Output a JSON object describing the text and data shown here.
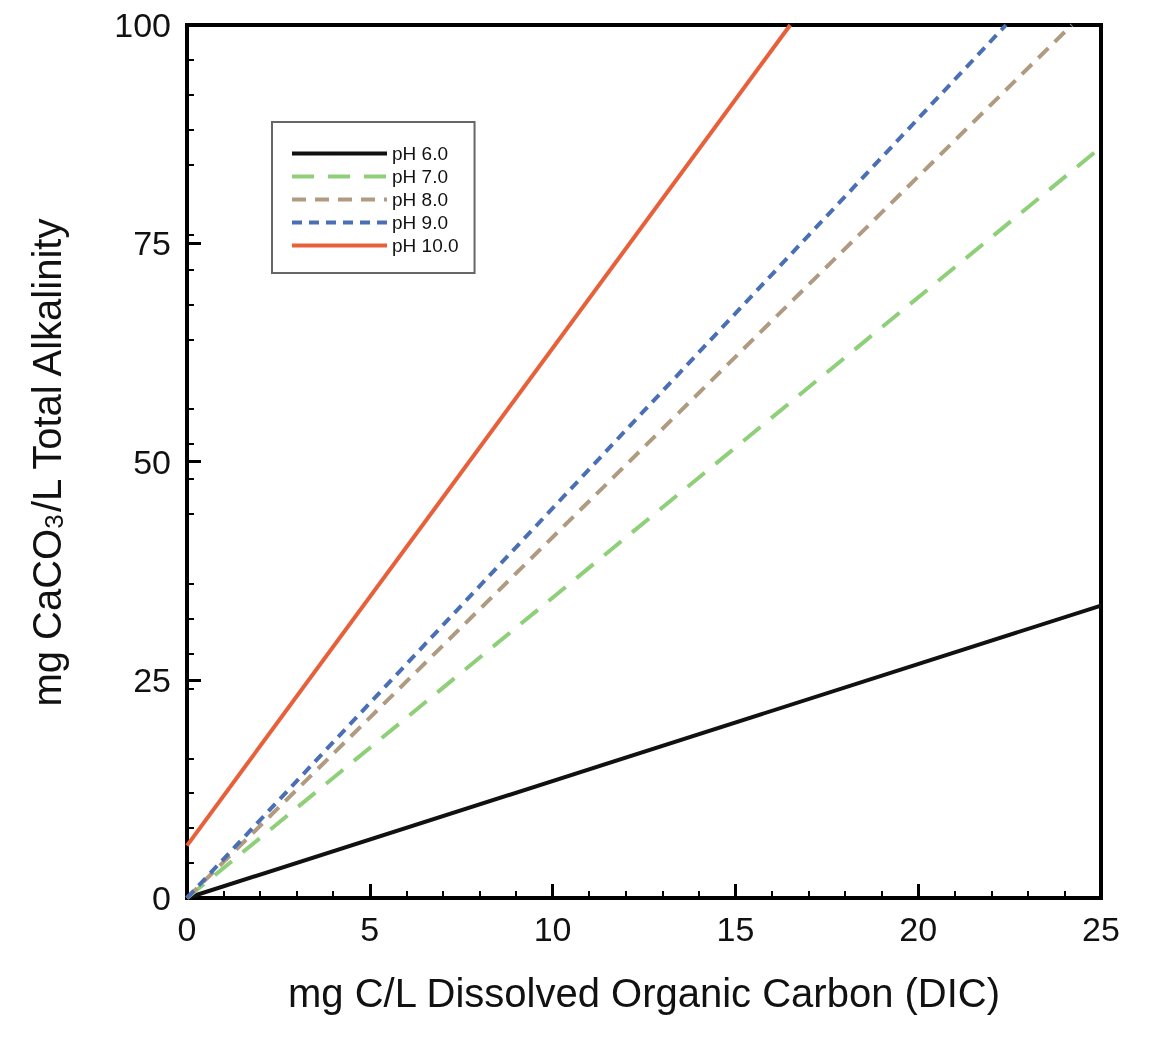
{
  "chart_data": {
    "type": "line",
    "xlabel": "mg C/L Dissolved Organic Carbon (DIC)",
    "ylabel": "mg CaCO$_{3}$/L Total Alkalinity",
    "xlim": [
      0,
      25
    ],
    "xticks": [
      0,
      5,
      10,
      15,
      20,
      25
    ],
    "ylim": [
      0,
      100
    ],
    "yticks": [
      0,
      25,
      50,
      75,
      100
    ],
    "grid": false,
    "legend": "top left",
    "marker": "none",
    "series": [
      {
        "name": "pH 6.0",
        "color": "#111111",
        "line_style": "solid",
        "x": [
          0,
          25
        ],
        "values": [
          0,
          33.5
        ]
      },
      {
        "name": "pH 7.0",
        "color": "#8fcf7a",
        "line_style": "dashed",
        "x": [
          0,
          25
        ],
        "values": [
          0,
          86
        ]
      },
      {
        "name": "pH 8.0",
        "color": "#b09a80",
        "line_style": "dashed",
        "x": [
          0,
          24.2
        ],
        "values": [
          0,
          100
        ]
      },
      {
        "name": "pH 9.0",
        "color": "#4a6fb5",
        "line_style": "dashed",
        "x": [
          0,
          22.4
        ],
        "values": [
          0,
          100
        ]
      },
      {
        "name": "pH 10.0",
        "color": "#e8603a",
        "line_style": "solid",
        "x": [
          0,
          16.5
        ],
        "values": [
          6,
          100
        ]
      }
    ]
  }
}
